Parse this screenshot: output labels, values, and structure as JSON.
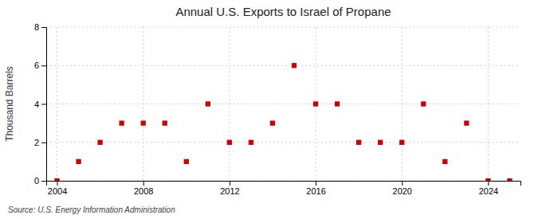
{
  "chart_data": {
    "type": "scatter",
    "title": "Annual U.S. Exports to Israel of Propane",
    "ylabel": "Thousand Barrels",
    "source": "Source: U.S. Energy Information Administration",
    "x": [
      2004,
      2005,
      2006,
      2007,
      2008,
      2009,
      2010,
      2011,
      2012,
      2013,
      2014,
      2015,
      2016,
      2017,
      2018,
      2019,
      2020,
      2021,
      2022,
      2023,
      2024,
      2025
    ],
    "values": [
      0,
      1,
      2,
      3,
      3,
      3,
      1,
      4,
      2,
      2,
      3,
      6,
      4,
      4,
      2,
      2,
      2,
      4,
      1,
      3,
      0,
      0
    ],
    "color": "#cc0000",
    "marker": "square",
    "xlim": [
      2003.5,
      2025.5
    ],
    "xticks": [
      2004,
      2008,
      2012,
      2016,
      2020,
      2024
    ],
    "ylim": [
      0,
      8
    ],
    "yticks": [
      0,
      2,
      4,
      6,
      8
    ],
    "grid": true
  }
}
